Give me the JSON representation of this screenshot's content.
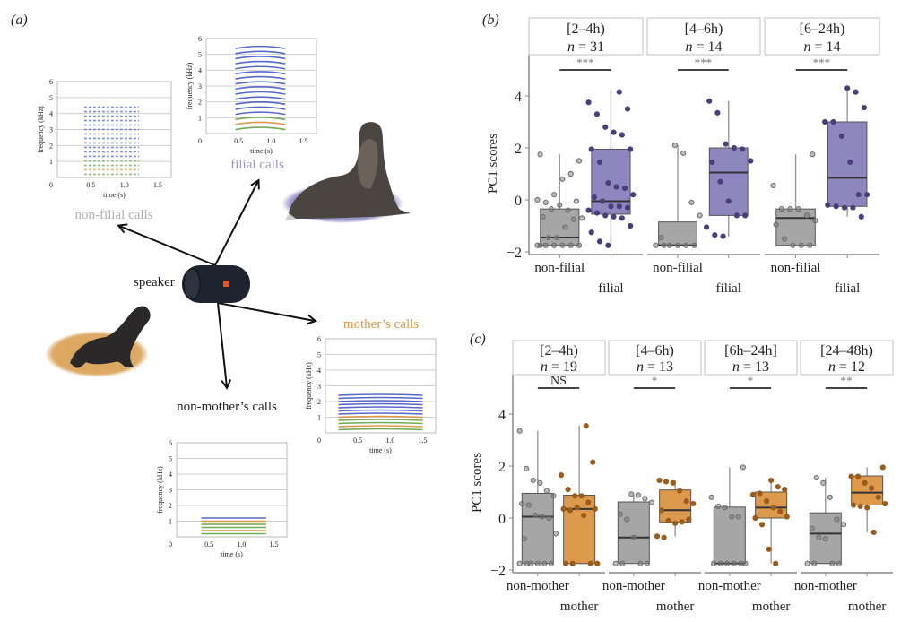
{
  "panel_a": {
    "label": "(a)",
    "speaker_label": "speaker",
    "speaker_icon": "speaker-icon",
    "speaker_logo": "JBL",
    "adult_seal_icon": "adult-fur-seal-image",
    "pup_seal_icon": "pup-fur-seal-image",
    "colors": {
      "filial": "#9b96c8",
      "non_filial": "#b0b0b0",
      "mother": "#d9964a",
      "non_mother": "#222222",
      "adult_halo": "#8f8cc4",
      "pup_halo": "#d9a45a"
    },
    "spectrograms": [
      {
        "id": "non-filial",
        "caption": "non-filial calls",
        "ylabel": "frequency (kHz)",
        "xlabel": "time (s)",
        "yticks": [
          "0",
          "1",
          "2",
          "3",
          "4",
          "5",
          "6"
        ],
        "xticks": [
          "0.5",
          "1.0",
          "1.5"
        ]
      },
      {
        "id": "filial",
        "caption": "filial calls",
        "ylabel": "frequency (kHz)",
        "xlabel": "time (s)",
        "yticks": [
          "0",
          "1",
          "2",
          "3",
          "4",
          "5",
          "6"
        ],
        "xticks": [
          "0.5",
          "1.0",
          "1.5"
        ]
      },
      {
        "id": "mother",
        "caption": "mother’s calls",
        "ylabel": "frequency (kHz)",
        "xlabel": "time (s)",
        "yticks": [
          "0",
          "1",
          "2",
          "3",
          "4",
          "5",
          "6"
        ],
        "xticks": [
          "0.5",
          "1.0",
          "1.5"
        ]
      },
      {
        "id": "non-mother",
        "caption": "non-mother’s calls",
        "ylabel": "frequency (kHz)",
        "xlabel": "time (s)",
        "yticks": [
          "0",
          "1",
          "2",
          "3",
          "4",
          "5",
          "6"
        ],
        "xticks": [
          "0.5",
          "1.0",
          "1.5"
        ]
      }
    ]
  },
  "chart_data": [
    {
      "type": "box",
      "panel_label": "(b)",
      "ylabel": "PC1 scores",
      "ylim": [
        -2.1,
        5.5
      ],
      "yticks": [
        -2,
        0,
        2,
        4
      ],
      "group_colors": {
        "non-filial": "#a6a6a6",
        "filial": "#8e86bf"
      },
      "point_colors": {
        "non-filial": "#6e6e6e",
        "filial": "#4b3f7a"
      },
      "facets": [
        {
          "strip": "[2–4h)",
          "n_label": "n = 31",
          "signif": "***",
          "groups": [
            {
              "name": "non-filial",
              "q1": -1.75,
              "median": -1.45,
              "q3": -0.35,
              "whisker_low": -1.75,
              "whisker_high": 1.75,
              "points": [
                -1.75,
                -1.75,
                -1.75,
                -1.75,
                -1.75,
                -1.75,
                -1.75,
                -1.45,
                -1.45,
                -1.05,
                -0.75,
                -0.7,
                -0.65,
                -0.35,
                -0.2,
                -0.4,
                -0.05,
                0,
                -0.1,
                0.2,
                0.8,
                1.0,
                1.5,
                1.75
              ]
            },
            {
              "name": "filial",
              "q1": -0.55,
              "median": -0.05,
              "q3": 1.95,
              "whisker_low": -1.75,
              "whisker_high": 4.15,
              "points": [
                4.15,
                3.5,
                3.75,
                3.3,
                2.8,
                2.6,
                2.5,
                1.95,
                1.95,
                1.45,
                0.65,
                0.5,
                0.45,
                0.2,
                0.1,
                -0.05,
                -0.25,
                -0.25,
                -0.3,
                -0.4,
                -0.5,
                -0.6,
                -0.65,
                -0.7,
                -1.0,
                -1.25,
                -1.6,
                -1.75
              ]
            }
          ]
        },
        {
          "strip": "[4–6h)",
          "n_label": "n = 14",
          "signif": "***",
          "groups": [
            {
              "name": "non-filial",
              "q1": -1.75,
              "median": -1.75,
              "q3": -0.85,
              "whisker_low": -1.75,
              "whisker_high": 2.1,
              "points": [
                2.1,
                1.8,
                -0.1,
                -0.6,
                -1.45,
                -1.75,
                -1.75,
                -1.75,
                -1.75,
                -1.75,
                -1.75
              ]
            },
            {
              "name": "filial",
              "q1": -0.6,
              "median": 1.05,
              "q3": 2.0,
              "whisker_low": -1.4,
              "whisker_high": 3.8,
              "points": [
                3.8,
                3.35,
                2.15,
                2.0,
                1.95,
                1.5,
                1.45,
                0.7,
                -0.05,
                -0.6,
                -0.6,
                -1.05,
                -1.35,
                -1.4
              ]
            }
          ]
        },
        {
          "strip": "[6–24h)",
          "n_label": "n = 14",
          "signif": "***",
          "groups": [
            {
              "name": "non-filial",
              "q1": -1.75,
              "median": -0.7,
              "q3": -0.35,
              "whisker_low": -1.75,
              "whisker_high": 1.75,
              "points": [
                1.75,
                0.55,
                -0.35,
                -0.35,
                -0.35,
                -0.6,
                -0.8,
                -0.95,
                -1.5,
                -1.75,
                -1.75,
                -1.75
              ]
            },
            {
              "name": "filial",
              "q1": -0.25,
              "median": 0.85,
              "q3": 3.0,
              "whisker_low": -0.65,
              "whisker_high": 4.3,
              "points": [
                4.3,
                4.15,
                3.55,
                3.0,
                3.0,
                2.45,
                1.45,
                0.2,
                0.2,
                -0.2,
                -0.25,
                -0.3,
                -0.3,
                -0.65
              ]
            }
          ]
        }
      ],
      "x_labels": {
        "non-filial": "non-filial",
        "filial": "filial"
      }
    },
    {
      "type": "box",
      "panel_label": "(c)",
      "ylabel": "PC1 scores",
      "ylim": [
        -2.1,
        5.5
      ],
      "yticks": [
        -2,
        0,
        2,
        4
      ],
      "group_colors": {
        "non-mother": "#a6a6a6",
        "mother": "#dd9a4c"
      },
      "point_colors": {
        "non-mother": "#6e6e6e",
        "mother": "#9a5c1c"
      },
      "facets": [
        {
          "strip": "[2–4h)",
          "n_label": "n = 19",
          "signif": "NS",
          "groups": [
            {
              "name": "non-mother",
              "q1": -1.75,
              "median": 0.05,
              "q3": 0.95,
              "whisker_low": -1.75,
              "whisker_high": 3.35,
              "points": [
                3.35,
                1.9,
                1.45,
                1.35,
                1.05,
                0.85,
                0.55,
                0.5,
                0.1,
                0.05,
                0.0,
                -0.6,
                -0.8,
                -1.75,
                -1.75,
                -1.75,
                -1.75,
                -1.75,
                -1.75
              ]
            },
            {
              "name": "mother",
              "q1": -1.75,
              "median": 0.35,
              "q3": 0.88,
              "whisker_low": -1.75,
              "whisker_high": 3.55,
              "points": [
                3.55,
                2.15,
                1.65,
                1.1,
                0.85,
                0.85,
                0.6,
                0.35,
                0.35,
                0.3,
                0.4,
                0.1,
                -1.75,
                -1.75,
                -1.75,
                -1.75
              ]
            }
          ]
        },
        {
          "strip": "[4–6h)",
          "n_label": "n = 13",
          "signif": "*",
          "groups": [
            {
              "name": "non-mother",
              "q1": -1.75,
              "median": -0.75,
              "q3": 0.62,
              "whisker_low": -1.75,
              "whisker_high": 0.92,
              "points": [
                0.92,
                0.88,
                0.75,
                0.6,
                0.15,
                -0.05,
                -0.75,
                -1.75,
                -1.75,
                -1.75,
                -1.75
              ]
            },
            {
              "name": "mother",
              "q1": -0.15,
              "median": 0.3,
              "q3": 1.08,
              "whisker_low": -0.7,
              "whisker_high": 1.45,
              "points": [
                1.45,
                1.4,
                1.35,
                1.05,
                0.65,
                0.55,
                0.3,
                -0.1,
                -0.2,
                -0.15,
                -0.05,
                -0.7,
                -0.75
              ]
            }
          ]
        },
        {
          "strip": "[6h–24h]",
          "n_label": "n = 13",
          "signif": "*",
          "groups": [
            {
              "name": "non-mother",
              "q1": -1.75,
              "median": -1.75,
              "q3": 0.42,
              "whisker_low": -1.75,
              "whisker_high": 1.95,
              "points": [
                1.95,
                0.8,
                0.45,
                0.4,
                0.05,
                0.05,
                -1.75,
                -1.75,
                -1.75,
                -1.75,
                -1.75,
                -1.75
              ]
            },
            {
              "name": "mother",
              "q1": 0.0,
              "median": 0.4,
              "q3": 1.0,
              "whisker_low": -1.75,
              "whisker_high": 1.45,
              "points": [
                1.45,
                1.2,
                1.1,
                0.9,
                0.95,
                0.65,
                0.4,
                0.25,
                0.05,
                0.0,
                -0.25,
                -1.2,
                -1.75
              ]
            }
          ]
        },
        {
          "strip": "[24–48h)",
          "n_label": "n = 12",
          "signif": "**",
          "groups": [
            {
              "name": "non-mother",
              "q1": -1.75,
              "median": -0.6,
              "q3": 0.2,
              "whisker_low": -1.75,
              "whisker_high": 1.55,
              "points": [
                1.55,
                1.35,
                0.8,
                -0.05,
                -0.25,
                -0.4,
                -0.75,
                -0.8,
                -1.75,
                -1.75,
                -1.75,
                -1.75
              ]
            },
            {
              "name": "mother",
              "q1": 0.5,
              "median": 0.98,
              "q3": 1.62,
              "whisker_low": -0.55,
              "whisker_high": 1.95,
              "points": [
                1.95,
                1.6,
                1.6,
                1.35,
                1.15,
                0.8,
                0.55,
                0.5,
                0.45,
                0.4,
                -0.55
              ]
            }
          ]
        }
      ],
      "x_labels": {
        "non-mother": "non-mother",
        "mother": "mother"
      }
    }
  ]
}
